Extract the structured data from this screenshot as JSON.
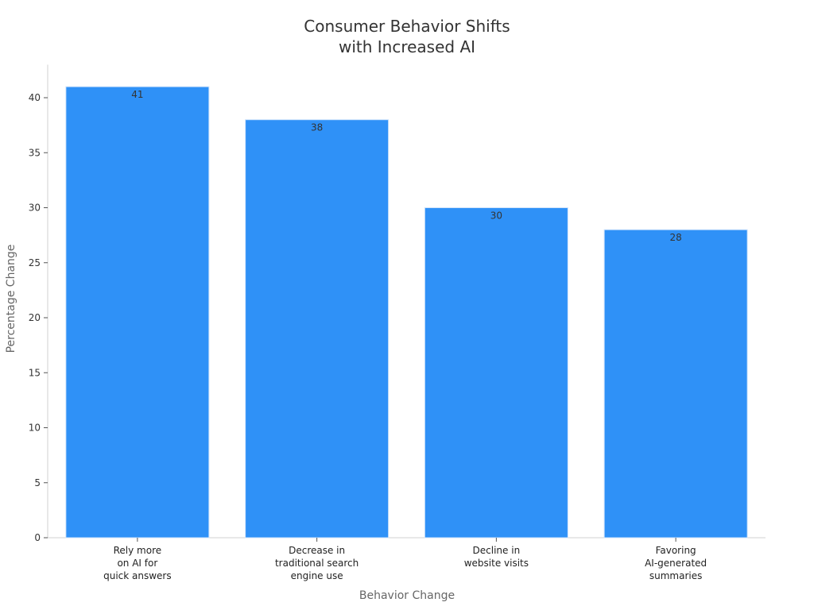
{
  "chart_data": {
    "type": "bar",
    "title": "Consumer Behavior Shifts with Increased AI",
    "title_lines": [
      "Consumer Behavior Shifts",
      "with Increased AI"
    ],
    "xlabel": "Behavior Change",
    "ylabel": "Percentage Change",
    "categories": [
      "Rely more on AI for quick answers",
      "Decrease in traditional search engine use",
      "Decline in website visits",
      "Favoring AI-generated summaries"
    ],
    "category_lines": [
      [
        "Rely more",
        "on AI for",
        "quick answers"
      ],
      [
        "Decrease in",
        "traditional search",
        "engine use"
      ],
      [
        "Decline in",
        "website visits"
      ],
      [
        "Favoring",
        "AI-generated",
        "summaries"
      ]
    ],
    "values": [
      41,
      38,
      30,
      28
    ],
    "data_labels": [
      "41",
      "38",
      "30",
      "28"
    ],
    "yticks": [
      0,
      5,
      10,
      15,
      20,
      25,
      30,
      35,
      40
    ],
    "ylim": [
      0,
      43
    ],
    "grid": false,
    "legend": null,
    "bar_color": "#2f91f7"
  }
}
